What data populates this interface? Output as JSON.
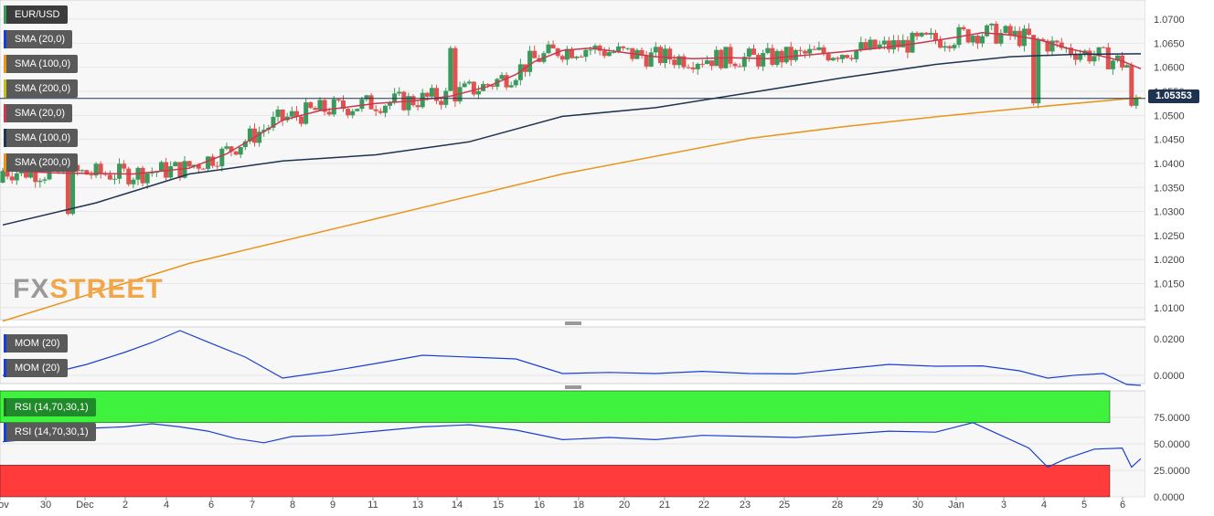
{
  "instrument": "EUR/USD",
  "indicator_labels": {
    "main": [
      "SMA (20,0)",
      "SMA (100,0)",
      "SMA (200,0)",
      "SMA (20,0)",
      "SMA (100,0)",
      "SMA (200,0)"
    ],
    "momentum": [
      "MOM (20)",
      "MOM (20)"
    ],
    "rsi": [
      "RSI (14,70,30,1)",
      "RSI (14,70,30,1)"
    ]
  },
  "current_price": "1.05353",
  "watermark": {
    "fx": "FX",
    "street": "STREET"
  },
  "colors": {
    "up_candle": "#3a9a5c",
    "down_candle": "#e0524f",
    "sma20": "#c8384f",
    "sma100": "#1e3350",
    "sma200": "#e8951c",
    "momentum": "#1a3fd0",
    "rsi": "#1a3fd0",
    "overbought_zone": "#3ef23e",
    "oversold_zone": "#ff3b3b",
    "price_line": "#1e3350"
  },
  "chart_data": [
    {
      "type": "candlestick",
      "title": "EUR/USD",
      "y_ticks": [
        "1.0700",
        "1.0650",
        "1.0600",
        "1.0550",
        "1.0500",
        "1.0450",
        "1.0400",
        "1.0350",
        "1.0300",
        "1.0250",
        "1.0200",
        "1.0150",
        "1.0100"
      ],
      "ylim": [
        1.0075,
        1.074
      ],
      "x_ticks": [
        "Nov",
        "30",
        "Dec",
        "2",
        "4",
        "6",
        "7",
        "8",
        "9",
        "11",
        "13",
        "14",
        "15",
        "16",
        "18",
        "20",
        "21",
        "22",
        "23",
        "25",
        "28",
        "29",
        "30",
        "Jan",
        "3",
        "4",
        "5",
        "6"
      ],
      "series": [
        {
          "name": "SMA (20,0)",
          "points": [
            [
              0,
              1.0385
            ],
            [
              12,
              1.038
            ],
            [
              28,
              1.0378
            ],
            [
              40,
              1.039
            ],
            [
              48,
              1.042
            ],
            [
              55,
              1.046
            ],
            [
              60,
              1.049
            ],
            [
              68,
              1.051
            ],
            [
              80,
              1.0525
            ],
            [
              88,
              1.053
            ],
            [
              96,
              1.054
            ],
            [
              104,
              1.056
            ],
            [
              110,
              1.0585
            ],
            [
              114,
              1.0612
            ],
            [
              120,
              1.0635
            ],
            [
              126,
              1.064
            ],
            [
              132,
              1.0632
            ],
            [
              140,
              1.0622
            ],
            [
              148,
              1.0618
            ],
            [
              156,
              1.062
            ],
            [
              164,
              1.0618
            ],
            [
              172,
              1.0625
            ],
            [
              180,
              1.0632
            ],
            [
              188,
              1.064
            ],
            [
              196,
              1.065
            ],
            [
              204,
              1.0662
            ],
            [
              210,
              1.0672
            ],
            [
              216,
              1.0667
            ],
            [
              222,
              1.0658
            ],
            [
              228,
              1.064
            ],
            [
              234,
              1.0627
            ],
            [
              240,
              1.0613
            ],
            [
              244,
              1.0597
            ]
          ]
        },
        {
          "name": "SMA (100,0)",
          "points": [
            [
              0,
              1.0272
            ],
            [
              20,
              1.0318
            ],
            [
              40,
              1.0378
            ],
            [
              60,
              1.0405
            ],
            [
              80,
              1.0418
            ],
            [
              100,
              1.0445
            ],
            [
              120,
              1.0498
            ],
            [
              140,
              1.0516
            ],
            [
              160,
              1.0547
            ],
            [
              180,
              1.0578
            ],
            [
              200,
              1.0606
            ],
            [
              216,
              1.0622
            ],
            [
              230,
              1.0627
            ],
            [
              244,
              1.0628
            ]
          ]
        },
        {
          "name": "SMA (200,0)",
          "points": [
            [
              0,
              1.0072
            ],
            [
              40,
              1.0192
            ],
            [
              80,
              1.0285
            ],
            [
              120,
              1.0378
            ],
            [
              160,
              1.0452
            ],
            [
              180,
              1.0476
            ],
            [
              200,
              1.0497
            ],
            [
              220,
              1.0516
            ],
            [
              244,
              1.0537
            ]
          ]
        }
      ]
    },
    {
      "type": "line",
      "title": "MOM (20)",
      "y_ticks": [
        "0.0200",
        "0.0000"
      ],
      "ylim": [
        -0.0045,
        0.0265
      ],
      "series": [
        {
          "name": "MOM (20)",
          "points": [
            [
              0,
              0.0
            ],
            [
              10,
              0.001
            ],
            [
              18,
              0.006
            ],
            [
              26,
              0.0125
            ],
            [
              32,
              0.018
            ],
            [
              38,
              0.0245
            ],
            [
              44,
              0.0182
            ],
            [
              52,
              0.01
            ],
            [
              60,
              -0.0015
            ],
            [
              70,
              0.0022
            ],
            [
              80,
              0.0065
            ],
            [
              90,
              0.011
            ],
            [
              100,
              0.01
            ],
            [
              110,
              0.009
            ],
            [
              120,
              0.001
            ],
            [
              130,
              0.0016
            ],
            [
              140,
              0.001
            ],
            [
              150,
              0.0022
            ],
            [
              160,
              0.001
            ],
            [
              170,
              0.0008
            ],
            [
              180,
              0.0035
            ],
            [
              190,
              0.006
            ],
            [
              200,
              0.005
            ],
            [
              210,
              0.0052
            ],
            [
              218,
              0.0025
            ],
            [
              224,
              -0.0015
            ],
            [
              230,
              0.0001
            ],
            [
              236,
              0.001
            ],
            [
              241,
              -0.005
            ],
            [
              244,
              -0.0055
            ]
          ]
        }
      ]
    },
    {
      "type": "line",
      "title": "RSI (14,70,30,1)",
      "y_ticks": [
        "75.0000",
        "50.0000",
        "25.0000",
        "0.0000"
      ],
      "ylim": [
        0,
        100
      ],
      "zones": [
        {
          "from": 70,
          "to": 100,
          "label": "overbought"
        },
        {
          "from": 0,
          "to": 30,
          "label": "oversold"
        }
      ],
      "series": [
        {
          "name": "RSI (14,70,30,1)",
          "points": [
            [
              0,
              52
            ],
            [
              8,
              55
            ],
            [
              14,
              60
            ],
            [
              20,
              65
            ],
            [
              26,
              66
            ],
            [
              32,
              69
            ],
            [
              38,
              66
            ],
            [
              44,
              62
            ],
            [
              50,
              55
            ],
            [
              56,
              51
            ],
            [
              62,
              57
            ],
            [
              70,
              58
            ],
            [
              80,
              62
            ],
            [
              90,
              66
            ],
            [
              100,
              68
            ],
            [
              110,
              63
            ],
            [
              120,
              54
            ],
            [
              130,
              56
            ],
            [
              140,
              54
            ],
            [
              150,
              58
            ],
            [
              160,
              57
            ],
            [
              170,
              56
            ],
            [
              180,
              59
            ],
            [
              190,
              62
            ],
            [
              200,
              61
            ],
            [
              208,
              70
            ],
            [
              214,
              58
            ],
            [
              220,
              46
            ],
            [
              224,
              28
            ],
            [
              228,
              36
            ],
            [
              234,
              45
            ],
            [
              240,
              46
            ],
            [
              242,
              28
            ],
            [
              244,
              36
            ]
          ]
        }
      ]
    }
  ]
}
